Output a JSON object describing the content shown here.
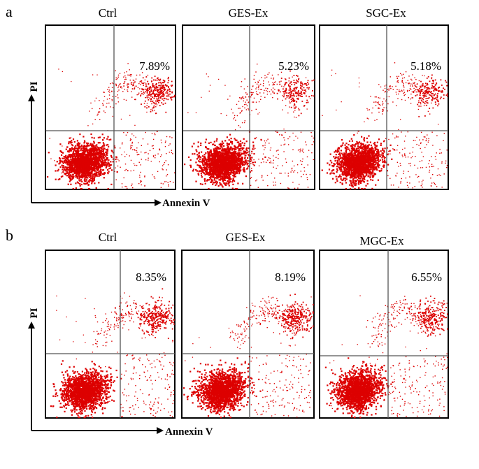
{
  "panel_a": {
    "letter": "a",
    "y_axis": "PI",
    "x_axis": "Annexin V",
    "plots": [
      {
        "title": "Ctrl",
        "percent": "7.89%"
      },
      {
        "title": "GES-Ex",
        "percent": "5.23%"
      },
      {
        "title": "SGC-Ex",
        "percent": "5.18%"
      }
    ]
  },
  "panel_b": {
    "letter": "b",
    "y_axis": "PI",
    "x_axis": "Annexin V",
    "plots": [
      {
        "title": "Ctrl",
        "percent": "8.35%"
      },
      {
        "title": "GES-Ex",
        "percent": "8.19%"
      },
      {
        "title": "MGC-Ex",
        "percent": "6.55%"
      }
    ]
  },
  "chart_data": [
    {
      "type": "scatter",
      "panel": "a",
      "title": "Ctrl",
      "xlabel": "Annexin V",
      "ylabel": "PI",
      "upper_right_percent": 7.89,
      "point_color": "#dd0000"
    },
    {
      "type": "scatter",
      "panel": "a",
      "title": "GES-Ex",
      "xlabel": "Annexin V",
      "ylabel": "PI",
      "upper_right_percent": 5.23,
      "point_color": "#dd0000"
    },
    {
      "type": "scatter",
      "panel": "a",
      "title": "SGC-Ex",
      "xlabel": "Annexin V",
      "ylabel": "PI",
      "upper_right_percent": 5.18,
      "point_color": "#dd0000"
    },
    {
      "type": "scatter",
      "panel": "b",
      "title": "Ctrl",
      "xlabel": "Annexin V",
      "ylabel": "PI",
      "upper_right_percent": 8.35,
      "point_color": "#dd0000"
    },
    {
      "type": "scatter",
      "panel": "b",
      "title": "GES-Ex",
      "xlabel": "Annexin V",
      "ylabel": "PI",
      "upper_right_percent": 8.19,
      "point_color": "#dd0000"
    },
    {
      "type": "scatter",
      "panel": "b",
      "title": "MGC-Ex",
      "xlabel": "Annexin V",
      "ylabel": "PI",
      "upper_right_percent": 6.55,
      "point_color": "#dd0000"
    }
  ]
}
